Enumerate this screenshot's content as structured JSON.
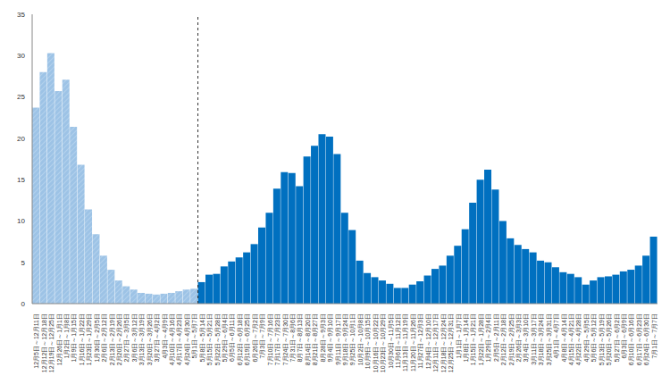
{
  "chart_data": {
    "type": "bar",
    "categories": [
      "12月5日～12月11日",
      "12月12日～12月18日",
      "12月19日～12月25日",
      "12月26日～1月1日",
      "1月2日～1月8日",
      "1月9日～1月15日",
      "1月16日～1月22日",
      "1月23日～1月29日",
      "1月30日～2月5日",
      "2月6日～2月12日",
      "2月13日～2月19日",
      "2月20日～2月26日",
      "2月27日～3月5日",
      "3月6日～3月12日",
      "3月13日～3月19日",
      "3月20日～3月26日",
      "3月27日～4月2日",
      "4月3日～4月9日",
      "4月10日～4月16日",
      "4月17日～4月23日",
      "4月24日～4月30日",
      "5月1日～5月7日",
      "5月8日～5月14日",
      "5月15日～5月21日",
      "5月22日～5月28日",
      "5月29日～6月4日",
      "6月5日～6月11日",
      "6月12日～6月18日",
      "6月19日～6月25日",
      "6月26日～7月2日",
      "7月3日～7月9日",
      "7月10日～7月16日",
      "7月17日～7月23日",
      "7月24日～7月30日",
      "7月31日～8月6日",
      "8月7日～8月13日",
      "8月14日～8月20日",
      "8月21日～8月27日",
      "8月28日～9月3日",
      "9月4日～9月10日",
      "9月11日～9月17日",
      "9月18日～9月24日",
      "9月25日～10月1日",
      "10月2日～10月8日",
      "10月9日～10月15日",
      "10月16日～10月22日",
      "10月23日～10月29日",
      "10月30日～11月5日",
      "11月6日～11月12日",
      "11月13日～11月19日",
      "11月20日～11月26日",
      "11月27日～12月3日",
      "12月4日～12月10日",
      "12月11日～12月17日",
      "12月18日～12月24日",
      "12月25日～12月31日",
      "1月1日～1月7日",
      "1月8日～1月14日",
      "1月15日～1月21日",
      "1月22日～1月28日",
      "1月29日～2月4日",
      "2月5日～2月11日",
      "2月12日～2月18日",
      "2月19日～2月25日",
      "2月26日～3月3日",
      "3月4日～3月10日",
      "3月11日～3月17日",
      "3月18日～3月24日",
      "3月25日～3月31日",
      "4月1日～4月7日",
      "4月8日～4月14日",
      "4月15日～4月21日",
      "4月22日～4月28日",
      "4月29日～5月5日",
      "5月6日～5月12日",
      "5月13日～5月19日",
      "5月20日～5月26日",
      "5月27日～6月2日",
      "6月3日～6月9日",
      "6月10日～6月16日",
      "6月17日～6月23日",
      "6月24日～6月30日",
      "7月1日～7月7日"
    ],
    "values": [
      23.7,
      28.0,
      30.3,
      25.7,
      27.1,
      21.4,
      16.8,
      11.4,
      8.4,
      5.8,
      4.1,
      2.8,
      2.1,
      1.7,
      1.3,
      1.2,
      1.1,
      1.2,
      1.3,
      1.5,
      1.7,
      1.8,
      2.6,
      3.5,
      3.6,
      4.5,
      5.1,
      5.6,
      6.2,
      7.2,
      9.2,
      11.0,
      13.9,
      15.9,
      15.8,
      14.2,
      17.8,
      19.1,
      20.5,
      20.2,
      18.1,
      11.0,
      8.9,
      5.2,
      3.7,
      3.2,
      2.8,
      2.4,
      1.9,
      1.9,
      2.3,
      2.7,
      3.4,
      4.2,
      4.6,
      5.8,
      7.0,
      9.0,
      12.2,
      15.0,
      16.2,
      13.8,
      10.0,
      7.9,
      7.1,
      6.6,
      6.2,
      5.2,
      5.0,
      4.4,
      3.8,
      3.6,
      3.2,
      2.3,
      2.8,
      3.2,
      3.3,
      3.5,
      3.9,
      4.1,
      4.6,
      5.8,
      8.1
    ],
    "colors": [
      "#9dc3e6",
      "#9dc3e6",
      "#9dc3e6",
      "#9dc3e6",
      "#9dc3e6",
      "#9dc3e6",
      "#9dc3e6",
      "#9dc3e6",
      "#9dc3e6",
      "#9dc3e6",
      "#9dc3e6",
      "#9dc3e6",
      "#9dc3e6",
      "#9dc3e6",
      "#9dc3e6",
      "#9dc3e6",
      "#9dc3e6",
      "#9dc3e6",
      "#9dc3e6",
      "#9dc3e6",
      "#9dc3e6",
      "#9dc3e6",
      "#0070c0",
      "#0070c0",
      "#0070c0",
      "#0070c0",
      "#0070c0",
      "#0070c0",
      "#0070c0",
      "#0070c0",
      "#0070c0",
      "#0070c0",
      "#0070c0",
      "#0070c0",
      "#0070c0",
      "#0070c0",
      "#0070c0",
      "#0070c0",
      "#0070c0",
      "#0070c0",
      "#0070c0",
      "#0070c0",
      "#0070c0",
      "#0070c0",
      "#0070c0",
      "#0070c0",
      "#0070c0",
      "#0070c0",
      "#0070c0",
      "#0070c0",
      "#0070c0",
      "#0070c0",
      "#0070c0",
      "#0070c0",
      "#0070c0",
      "#0070c0",
      "#0070c0",
      "#0070c0",
      "#0070c0",
      "#0070c0",
      "#0070c0",
      "#0070c0",
      "#0070c0",
      "#0070c0",
      "#0070c0",
      "#0070c0",
      "#0070c0",
      "#0070c0",
      "#0070c0",
      "#0070c0",
      "#0070c0",
      "#0070c0",
      "#0070c0",
      "#0070c0",
      "#0070c0",
      "#0070c0",
      "#0070c0",
      "#0070c0",
      "#0070c0",
      "#0070c0",
      "#0070c0",
      "#0070c0",
      "#0070c0"
    ],
    "ylim": [
      0,
      35
    ],
    "yticks": [
      0,
      5,
      10,
      15,
      20,
      25,
      30,
      35
    ],
    "grid": false
  }
}
